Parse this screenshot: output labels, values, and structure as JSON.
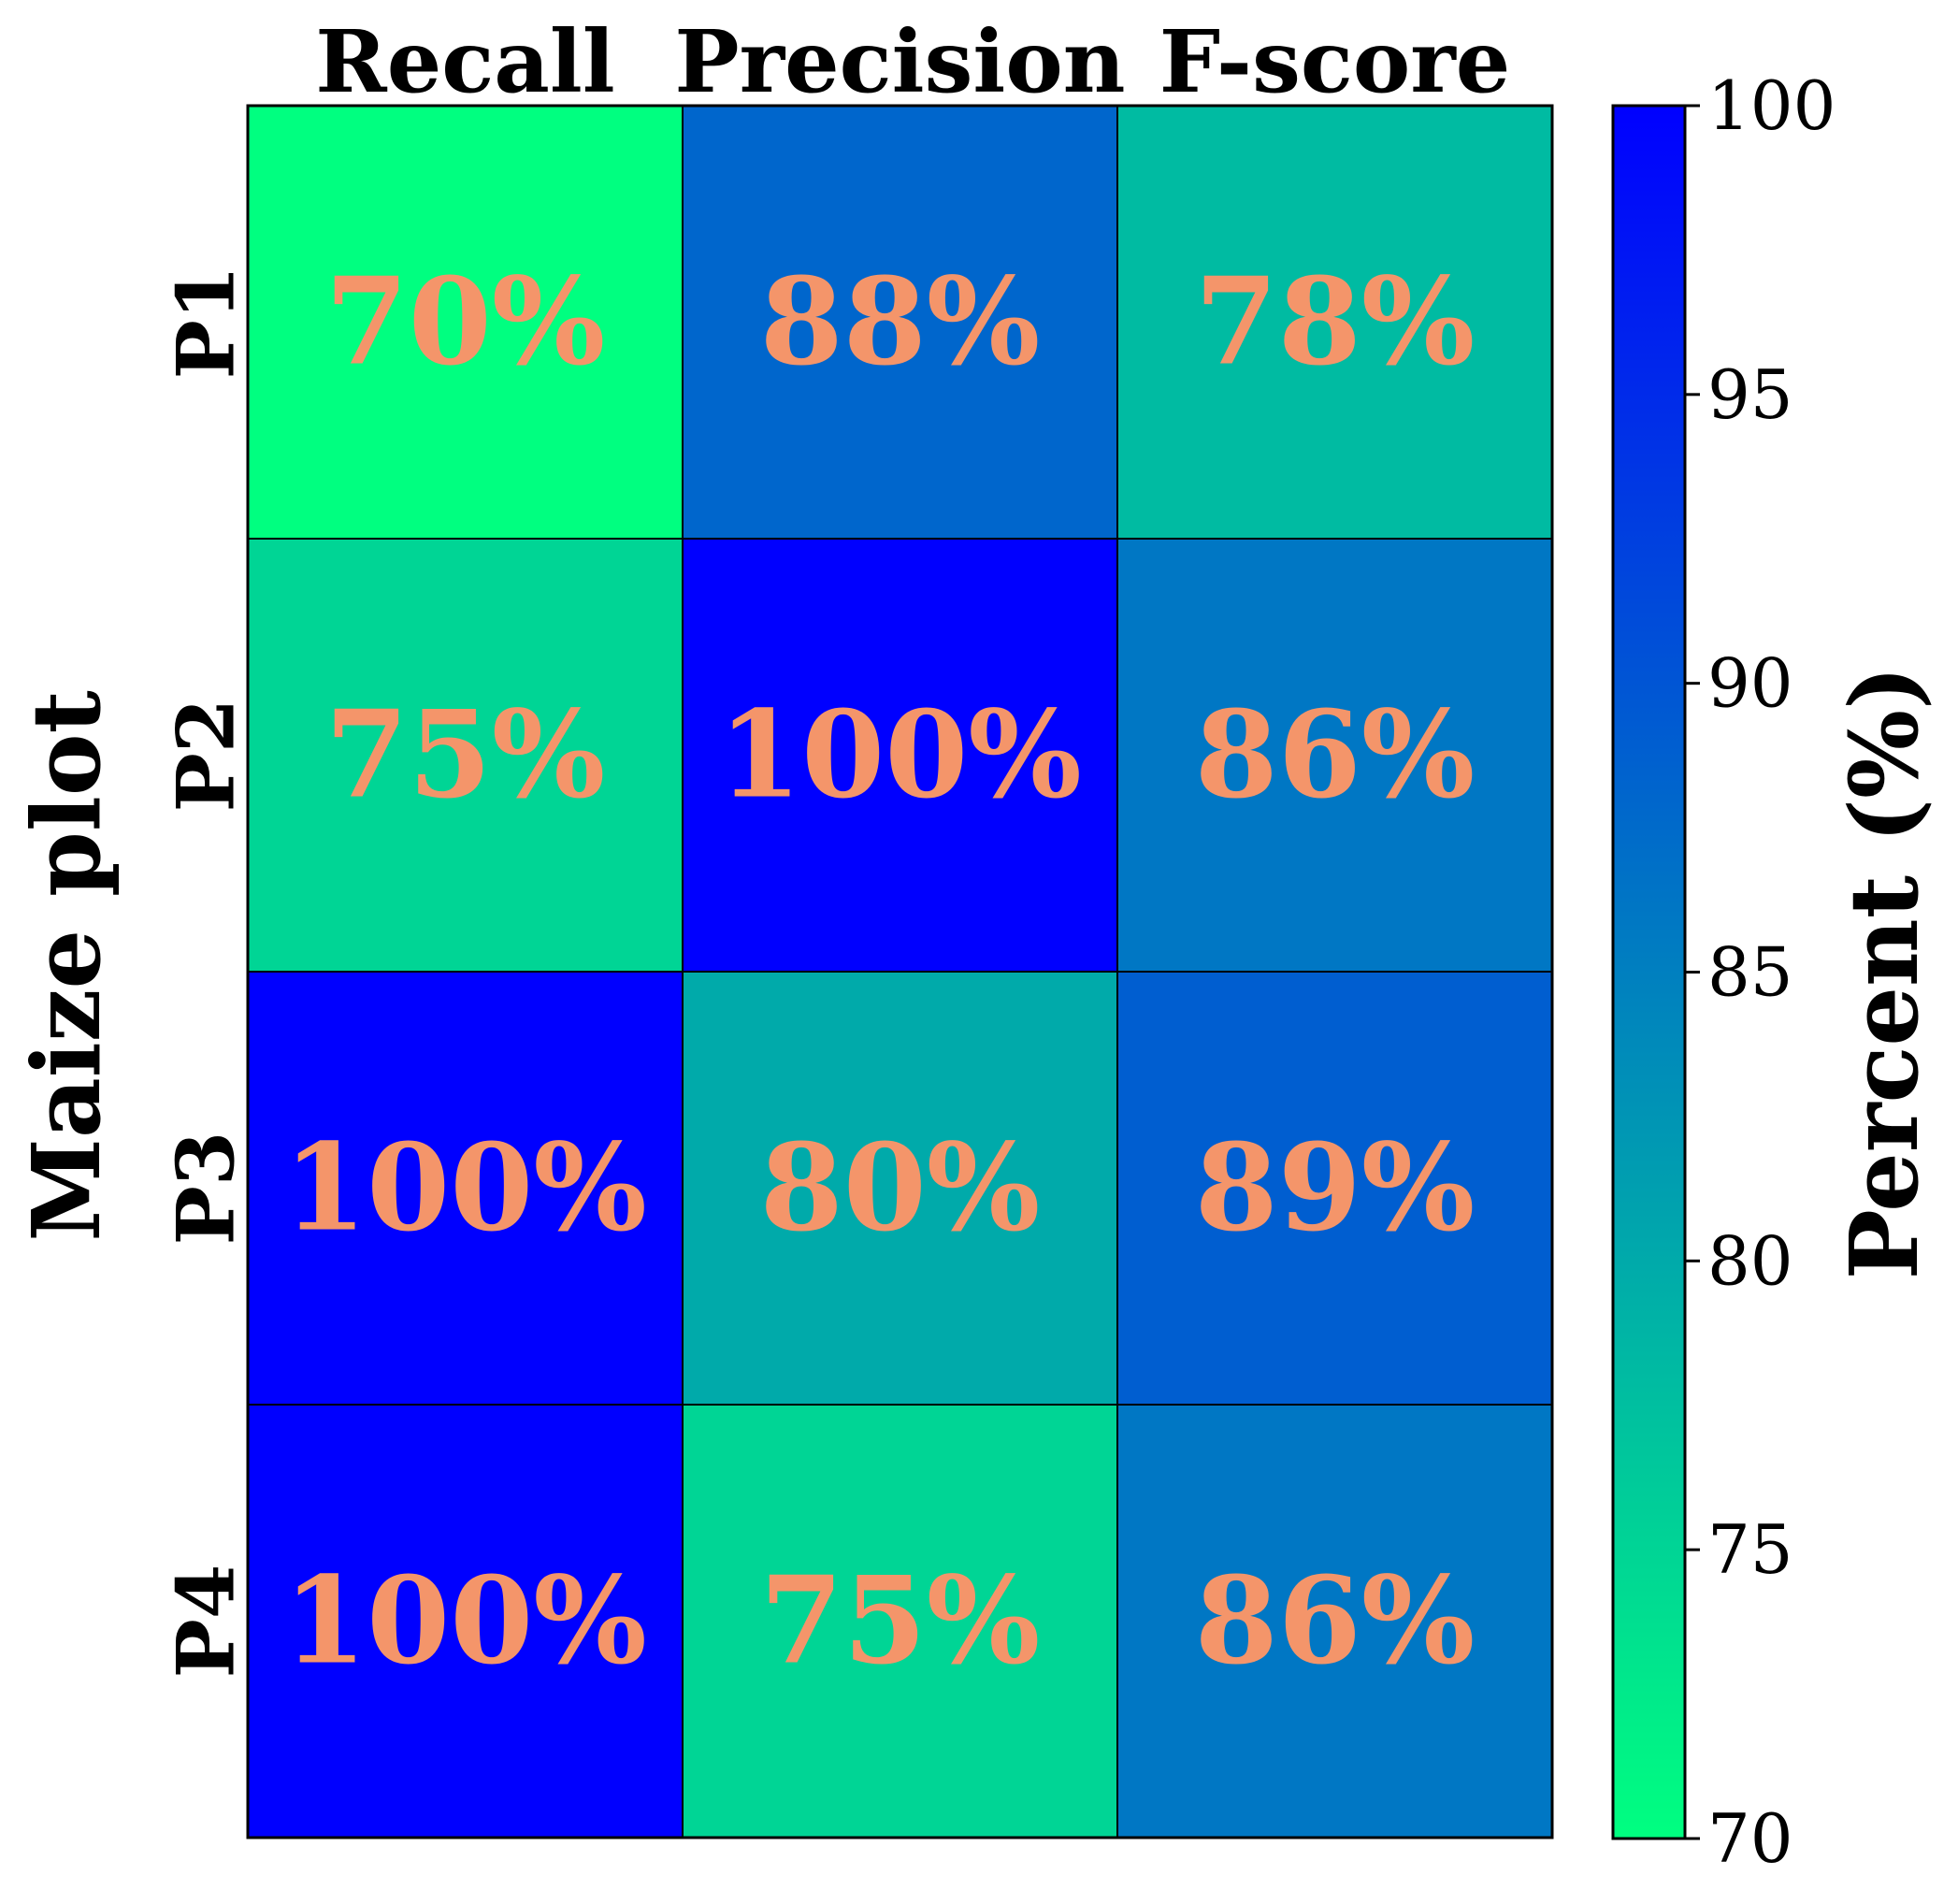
{
  "chart_data": {
    "type": "heatmap",
    "columns": [
      "Recall",
      "Precision",
      "F-score"
    ],
    "rows": [
      "P1",
      "P2",
      "P3",
      "P4"
    ],
    "values": [
      [
        70,
        88,
        78
      ],
      [
        75,
        100,
        86
      ],
      [
        100,
        80,
        89
      ],
      [
        100,
        75,
        86
      ]
    ],
    "cell_labels": [
      [
        "70%",
        "88%",
        "78%"
      ],
      [
        "75%",
        "100%",
        "86%"
      ],
      [
        "100%",
        "80%",
        "89%"
      ],
      [
        "100%",
        "75%",
        "86%"
      ]
    ],
    "ylabel": "Maize plot",
    "colorbar": {
      "label": "Percent (%)",
      "range": [
        70,
        100
      ],
      "ticks": [
        70,
        75,
        80,
        85,
        90,
        95,
        100
      ],
      "colormap": "winter_r",
      "color_low": "#00ff80",
      "color_high": "#0000ff"
    },
    "cell_text_color": "#f4956a"
  }
}
